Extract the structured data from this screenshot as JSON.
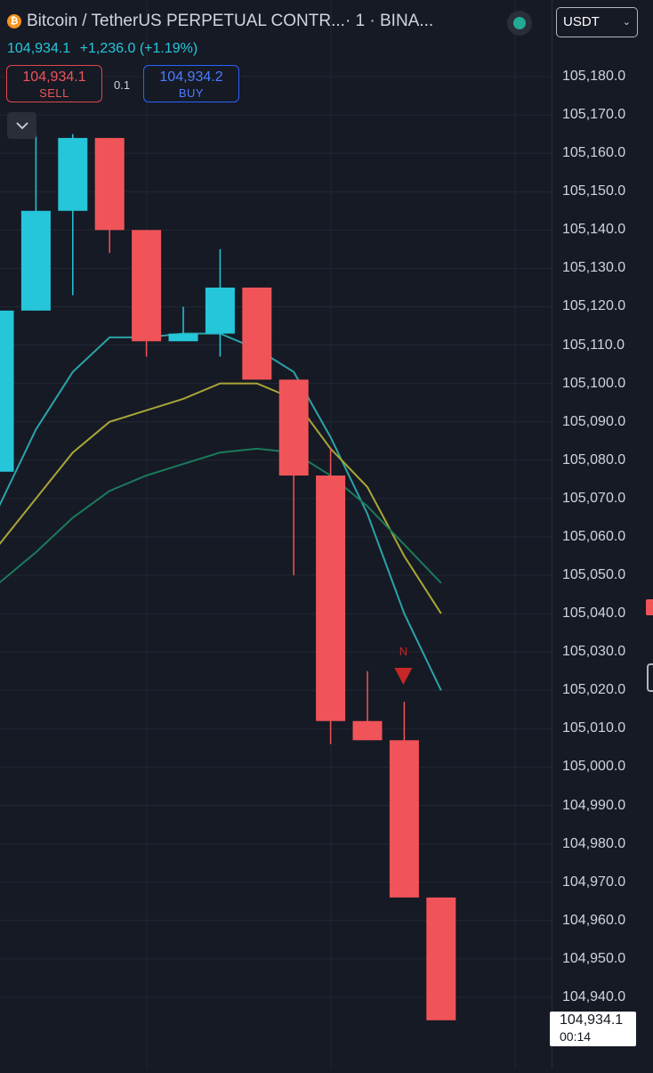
{
  "header": {
    "coin_icon_glyph": "₿",
    "symbol_title": "Bitcoin / TetherUS PERPETUAL CONTR...",
    "timeframe": " · 1 · BINA...",
    "last_price": "104,934.1",
    "change": "+1,236.0 (+1.19%)",
    "sell_price": "104,934.1",
    "sell_label": "SELL",
    "lot_size": "0.1",
    "buy_price": "104,934.2",
    "buy_label": "BUY"
  },
  "currency_select": {
    "value": "USDT",
    "icon": "chevron-down-icon"
  },
  "price_label": {
    "value": "104,934.1",
    "countdown": "00:14"
  },
  "colors": {
    "up": "#26c6da",
    "down": "#f05459",
    "ema_fast": "#2ba3a8",
    "ema_mid": "#a9a637",
    "ema_slow": "#1b7a5a",
    "signal": "#c62828"
  },
  "chart_data": {
    "type": "candlestick",
    "ylim": [
      104930,
      105190
    ],
    "yticks": [
      "105,180.0",
      "105,170.0",
      "105,160.0",
      "105,150.0",
      "105,140.0",
      "105,130.0",
      "105,120.0",
      "105,110.0",
      "105,100.0",
      "105,090.0",
      "105,080.0",
      "105,070.0",
      "105,060.0",
      "105,050.0",
      "105,040.0",
      "105,030.0",
      "105,020.0",
      "105,010.0",
      "105,000.0",
      "104,990.0",
      "104,980.0",
      "104,970.0",
      "104,960.0",
      "104,950.0",
      "104,940.0"
    ],
    "grid": true,
    "candles": [
      {
        "open": 105077,
        "high": 105129,
        "low": 105077,
        "close": 105119
      },
      {
        "open": 105119,
        "high": 105165,
        "low": 105119,
        "close": 105145
      },
      {
        "open": 105145,
        "high": 105165,
        "low": 105123,
        "close": 105164
      },
      {
        "open": 105164,
        "high": 105164,
        "low": 105134,
        "close": 105140
      },
      {
        "open": 105140,
        "high": 105140,
        "low": 105107,
        "close": 105111
      },
      {
        "open": 105111,
        "high": 105120,
        "low": 105111,
        "close": 105113
      },
      {
        "open": 105113,
        "high": 105135,
        "low": 105107,
        "close": 105125
      },
      {
        "open": 105125,
        "high": 105125,
        "low": 105101,
        "close": 105101
      },
      {
        "open": 105101,
        "high": 105101,
        "low": 105050,
        "close": 105076
      },
      {
        "open": 105076,
        "high": 105083,
        "low": 105006,
        "close": 105012
      },
      {
        "open": 105012,
        "high": 105025,
        "low": 105007,
        "close": 105007
      },
      {
        "open": 105007,
        "high": 105017,
        "low": 104966,
        "close": 104966
      },
      {
        "open": 104966,
        "high": 104966,
        "low": 104934,
        "close": 104934
      }
    ],
    "ema_lines": [
      {
        "name": "ema_fast",
        "values": [
          105068,
          105088,
          105103,
          105112,
          105112,
          105113,
          105113,
          105109,
          105103,
          105086,
          105066,
          105040,
          105020
        ]
      },
      {
        "name": "ema_mid",
        "values": [
          105058,
          105070,
          105082,
          105090,
          105093,
          105096,
          105100,
          105100,
          105096,
          105083,
          105073,
          105055,
          105040
        ]
      },
      {
        "name": "ema_slow",
        "values": [
          105048,
          105056,
          105065,
          105072,
          105076,
          105079,
          105082,
          105083,
          105082,
          105076,
          105068,
          105058,
          105048
        ]
      }
    ],
    "signal": {
      "label": "N",
      "bar_index": 11
    }
  }
}
